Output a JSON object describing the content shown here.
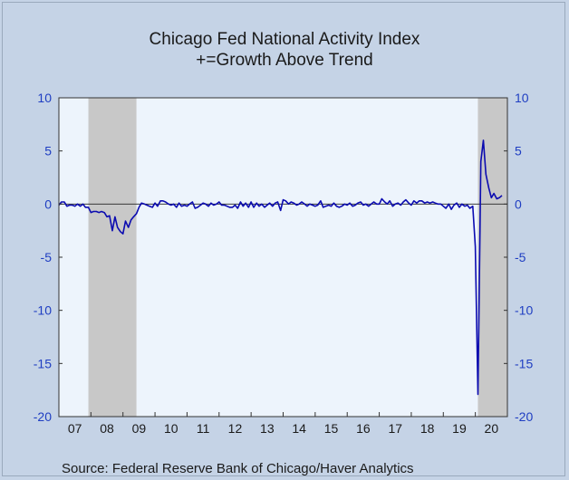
{
  "chart_data": {
    "type": "line",
    "title": "Chicago Fed National Activity Index",
    "subtitle": "+=Growth Above Trend",
    "source": "Source:  Federal Reserve Bank of Chicago/Haver Analytics",
    "ylim": [
      -20,
      10
    ],
    "yticks": [
      "10",
      "5",
      "0",
      "-5",
      "-10",
      "-15",
      "-20"
    ],
    "ytick_values": [
      10,
      5,
      0,
      -5,
      -10,
      -15,
      -20
    ],
    "xlim": [
      2007.0,
      2021.0
    ],
    "xticks": [
      "07",
      "08",
      "09",
      "10",
      "11",
      "12",
      "13",
      "14",
      "15",
      "16",
      "17",
      "18",
      "19",
      "20"
    ],
    "xtick_values": [
      2007,
      2008,
      2009,
      2010,
      2011,
      2012,
      2013,
      2014,
      2015,
      2016,
      2017,
      2018,
      2019,
      2020
    ],
    "recessions": [
      [
        2007.92,
        2009.42
      ],
      [
        2020.08,
        2021.0
      ]
    ],
    "zero_line": true,
    "colors": {
      "line": "#0b0bb0",
      "plot_bg": "#edf4fc",
      "recession": "#c8c8c8",
      "axis_text": "#1f3ec2"
    },
    "series": [
      {
        "x": [
          2007.0,
          2007.08,
          2007.17,
          2007.25,
          2007.33,
          2007.42,
          2007.5,
          2007.58,
          2007.67,
          2007.75,
          2007.83,
          2007.92,
          2008.0,
          2008.08,
          2008.17,
          2008.25,
          2008.33,
          2008.42,
          2008.5,
          2008.58,
          2008.67,
          2008.75,
          2008.83,
          2008.92,
          2009.0,
          2009.08,
          2009.17,
          2009.25,
          2009.33,
          2009.42,
          2009.5,
          2009.58,
          2009.67,
          2009.75,
          2009.83,
          2009.92,
          2010.0,
          2010.08,
          2010.17,
          2010.25,
          2010.33,
          2010.42,
          2010.5,
          2010.58,
          2010.67,
          2010.75,
          2010.83,
          2010.92,
          2011.0,
          2011.08,
          2011.17,
          2011.25,
          2011.33,
          2011.42,
          2011.5,
          2011.58,
          2011.67,
          2011.75,
          2011.83,
          2011.92,
          2012.0,
          2012.08,
          2012.17,
          2012.25,
          2012.33,
          2012.42,
          2012.5,
          2012.58,
          2012.67,
          2012.75,
          2012.83,
          2012.92,
          2013.0,
          2013.08,
          2013.17,
          2013.25,
          2013.33,
          2013.42,
          2013.5,
          2013.58,
          2013.67,
          2013.75,
          2013.83,
          2013.92,
          2014.0,
          2014.08,
          2014.17,
          2014.25,
          2014.33,
          2014.42,
          2014.5,
          2014.58,
          2014.67,
          2014.75,
          2014.83,
          2014.92,
          2015.0,
          2015.08,
          2015.17,
          2015.25,
          2015.33,
          2015.42,
          2015.5,
          2015.58,
          2015.67,
          2015.75,
          2015.83,
          2015.92,
          2016.0,
          2016.08,
          2016.17,
          2016.25,
          2016.33,
          2016.42,
          2016.5,
          2016.58,
          2016.67,
          2016.75,
          2016.83,
          2016.92,
          2017.0,
          2017.08,
          2017.17,
          2017.25,
          2017.33,
          2017.42,
          2017.5,
          2017.58,
          2017.67,
          2017.75,
          2017.83,
          2017.92,
          2018.0,
          2018.08,
          2018.17,
          2018.25,
          2018.33,
          2018.42,
          2018.5,
          2018.58,
          2018.67,
          2018.75,
          2018.83,
          2018.92,
          2019.0,
          2019.08,
          2019.17,
          2019.25,
          2019.33,
          2019.42,
          2019.5,
          2019.58,
          2019.67,
          2019.75,
          2019.83,
          2019.92,
          2020.0,
          2020.08,
          2020.17,
          2020.25,
          2020.33,
          2020.42,
          2020.5,
          2020.58,
          2020.67,
          2020.75,
          2020.83
        ],
        "values": [
          -0.1,
          0.2,
          0.2,
          -0.2,
          -0.1,
          -0.1,
          -0.2,
          0.0,
          -0.2,
          0.0,
          -0.3,
          -0.3,
          -0.8,
          -0.7,
          -0.7,
          -0.8,
          -0.7,
          -0.8,
          -1.2,
          -1.1,
          -2.5,
          -1.2,
          -2.2,
          -2.6,
          -2.8,
          -1.6,
          -2.2,
          -1.5,
          -1.2,
          -0.9,
          -0.3,
          0.1,
          0.0,
          -0.1,
          -0.2,
          -0.3,
          0.1,
          -0.2,
          0.3,
          0.3,
          0.2,
          0.0,
          -0.1,
          0.0,
          -0.3,
          0.1,
          -0.2,
          -0.1,
          -0.2,
          0.0,
          0.2,
          -0.4,
          -0.3,
          -0.1,
          0.1,
          0.0,
          -0.2,
          0.1,
          -0.1,
          0.0,
          0.2,
          -0.1,
          -0.1,
          -0.2,
          -0.3,
          -0.3,
          -0.1,
          -0.4,
          0.2,
          -0.2,
          0.1,
          -0.3,
          0.2,
          -0.3,
          0.1,
          -0.2,
          0.0,
          -0.3,
          -0.1,
          0.1,
          -0.2,
          0.1,
          0.2,
          -0.6,
          0.4,
          0.3,
          0.0,
          0.2,
          0.1,
          -0.1,
          0.0,
          0.2,
          0.0,
          -0.2,
          0.0,
          -0.1,
          -0.2,
          -0.1,
          0.3,
          -0.3,
          -0.2,
          -0.1,
          -0.2,
          0.1,
          -0.2,
          -0.3,
          -0.2,
          0.0,
          -0.1,
          0.1,
          -0.2,
          -0.1,
          0.1,
          0.2,
          -0.1,
          0.0,
          -0.2,
          0.0,
          0.2,
          0.0,
          0.0,
          0.5,
          0.2,
          0.0,
          0.3,
          -0.2,
          0.0,
          0.1,
          -0.1,
          0.2,
          0.4,
          0.1,
          -0.1,
          0.3,
          0.1,
          0.3,
          0.3,
          0.1,
          0.2,
          0.1,
          0.2,
          0.1,
          0.0,
          0.0,
          -0.2,
          -0.4,
          0.0,
          -0.5,
          -0.1,
          0.1,
          -0.3,
          0.0,
          -0.2,
          -0.1,
          -0.4,
          -0.2,
          -4.0,
          -17.9,
          4.0,
          6.0,
          2.8,
          1.5,
          0.6,
          1.0,
          0.5,
          0.6,
          0.8
        ]
      }
    ]
  }
}
